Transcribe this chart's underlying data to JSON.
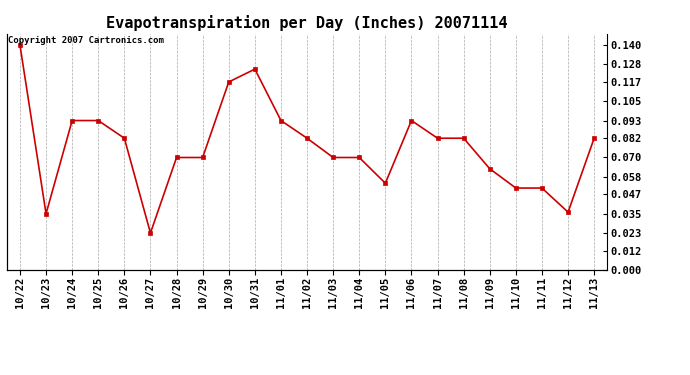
{
  "title": "Evapotranspiration per Day (Inches) 20071114",
  "copyright": "Copyright 2007 Cartronics.com",
  "x_labels": [
    "10/22",
    "10/23",
    "10/24",
    "10/25",
    "10/26",
    "10/27",
    "10/28",
    "10/29",
    "10/30",
    "10/31",
    "11/01",
    "11/02",
    "11/03",
    "11/04",
    "11/05",
    "11/06",
    "11/07",
    "11/08",
    "11/09",
    "11/10",
    "11/11",
    "11/12",
    "11/13"
  ],
  "y_values": [
    0.14,
    0.035,
    0.093,
    0.093,
    0.082,
    0.023,
    0.07,
    0.07,
    0.117,
    0.125,
    0.093,
    0.082,
    0.07,
    0.07,
    0.054,
    0.093,
    0.082,
    0.082,
    0.063,
    0.051,
    0.051,
    0.036,
    0.082
  ],
  "line_color": "#cc0000",
  "marker": "s",
  "marker_size": 3,
  "bg_color": "#ffffff",
  "grid_color": "#aaaaaa",
  "y_ticks": [
    0.0,
    0.012,
    0.023,
    0.035,
    0.047,
    0.058,
    0.07,
    0.082,
    0.093,
    0.105,
    0.117,
    0.128,
    0.14
  ],
  "ylim": [
    0.0,
    0.147
  ],
  "title_fontsize": 11,
  "tick_fontsize": 7.5,
  "copyright_fontsize": 6.5
}
